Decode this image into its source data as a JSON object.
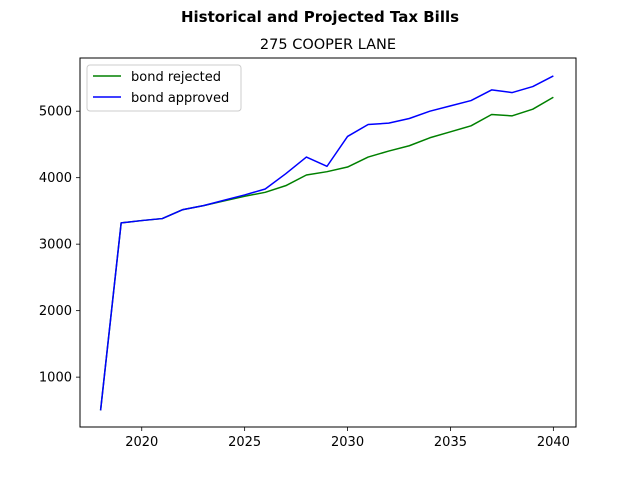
{
  "chart_data": {
    "type": "line",
    "title": "Historical and Projected Tax Bills",
    "subtitle": "275 COOPER LANE",
    "xlabel": "",
    "ylabel": "",
    "xlim": [
      2017,
      2041.1
    ],
    "ylim": [
      250,
      5800
    ],
    "xticks": [
      2020,
      2025,
      2030,
      2035,
      2040
    ],
    "yticks": [
      1000,
      2000,
      3000,
      4000,
      5000
    ],
    "grid": false,
    "legend_position": "upper-left",
    "x": [
      2018,
      2019,
      2020,
      2021,
      2022,
      2023,
      2024,
      2025,
      2026,
      2027,
      2028,
      2029,
      2030,
      2031,
      2032,
      2033,
      2034,
      2035,
      2036,
      2037,
      2038,
      2039,
      2040
    ],
    "series": [
      {
        "name": "bond rejected",
        "color": "#008000",
        "values": [
          500,
          3320,
          3355,
          3385,
          3520,
          3580,
          3650,
          3720,
          3780,
          3880,
          4040,
          4090,
          4160,
          4310,
          4400,
          4480,
          4600,
          4690,
          4780,
          4950,
          4930,
          5030,
          5210
        ]
      },
      {
        "name": "bond approved",
        "color": "#0000ff",
        "values": [
          500,
          3320,
          3355,
          3385,
          3520,
          3580,
          3660,
          3740,
          3830,
          4060,
          4310,
          4170,
          4620,
          4800,
          4820,
          4890,
          5000,
          5080,
          5160,
          5320,
          5280,
          5370,
          5530
        ]
      }
    ]
  }
}
